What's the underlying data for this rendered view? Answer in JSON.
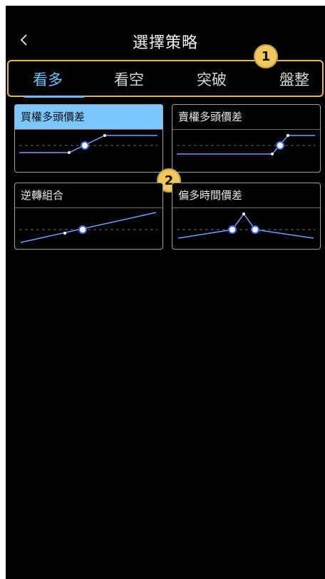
{
  "header": {
    "title": "選擇策略"
  },
  "tabs": [
    {
      "label": "看多"
    },
    {
      "label": "看空"
    },
    {
      "label": "突破"
    },
    {
      "label": "盤整"
    }
  ],
  "active_tab": 0,
  "callouts": {
    "one": "1",
    "two": "2"
  },
  "strategies": [
    {
      "label": "買權多頭價差",
      "selected": true
    },
    {
      "label": "賣權多頭價差",
      "selected": false
    },
    {
      "label": "逆轉組合",
      "selected": false
    },
    {
      "label": "偏多時間價差",
      "selected": false
    }
  ],
  "colors": {
    "accent": "#6cc3ff",
    "highlight": "#e8b93c",
    "callout": "#f1c95a",
    "background": "#000000"
  }
}
